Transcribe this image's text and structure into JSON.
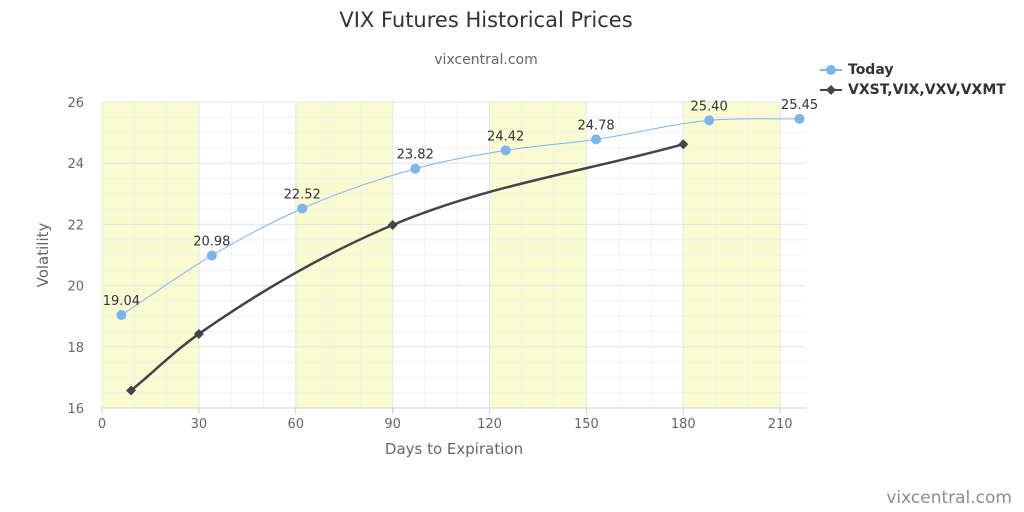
{
  "header": {
    "title": "VIX Futures Historical Prices",
    "subtitle": "vixcentral.com"
  },
  "credit": "vixcentral.com",
  "colors": {
    "today": "#7cb5ec",
    "indices": "#434348",
    "band": "#fbfbd2",
    "grid": "#e6e6e6"
  },
  "chart_data": {
    "type": "line",
    "title": "VIX Futures Historical Prices",
    "subtitle": "vixcentral.com",
    "xlabel": "Days to Expiration",
    "ylabel": "Volatility",
    "xlim": [
      0,
      218
    ],
    "ylim": [
      16,
      26
    ],
    "xticks": [
      0,
      30,
      60,
      90,
      120,
      150,
      180,
      210
    ],
    "yticks": [
      16,
      18,
      20,
      22,
      24,
      26
    ],
    "shaded_bands": [
      [
        0,
        30
      ],
      [
        60,
        90
      ],
      [
        120,
        150
      ],
      [
        180,
        210
      ]
    ],
    "grid": true,
    "legend_position": "top-right",
    "series": [
      {
        "name": "Today",
        "marker": "circle",
        "points": [
          {
            "x": 6,
            "y": 19.04,
            "label": "19.04"
          },
          {
            "x": 34,
            "y": 20.98,
            "label": "20.98"
          },
          {
            "x": 62,
            "y": 22.52,
            "label": "22.52"
          },
          {
            "x": 97,
            "y": 23.82,
            "label": "23.82"
          },
          {
            "x": 125,
            "y": 24.42,
            "label": "24.42"
          },
          {
            "x": 153,
            "y": 24.78,
            "label": "24.78"
          },
          {
            "x": 188,
            "y": 25.4,
            "label": "25.40"
          },
          {
            "x": 216,
            "y": 25.45,
            "label": "25.45"
          }
        ]
      },
      {
        "name": "VXST,VIX,VXV,VXMT",
        "marker": "diamond",
        "points": [
          {
            "x": 9,
            "y": 16.57
          },
          {
            "x": 30,
            "y": 18.42
          },
          {
            "x": 90,
            "y": 21.98
          },
          {
            "x": 180,
            "y": 24.62
          }
        ]
      }
    ]
  }
}
